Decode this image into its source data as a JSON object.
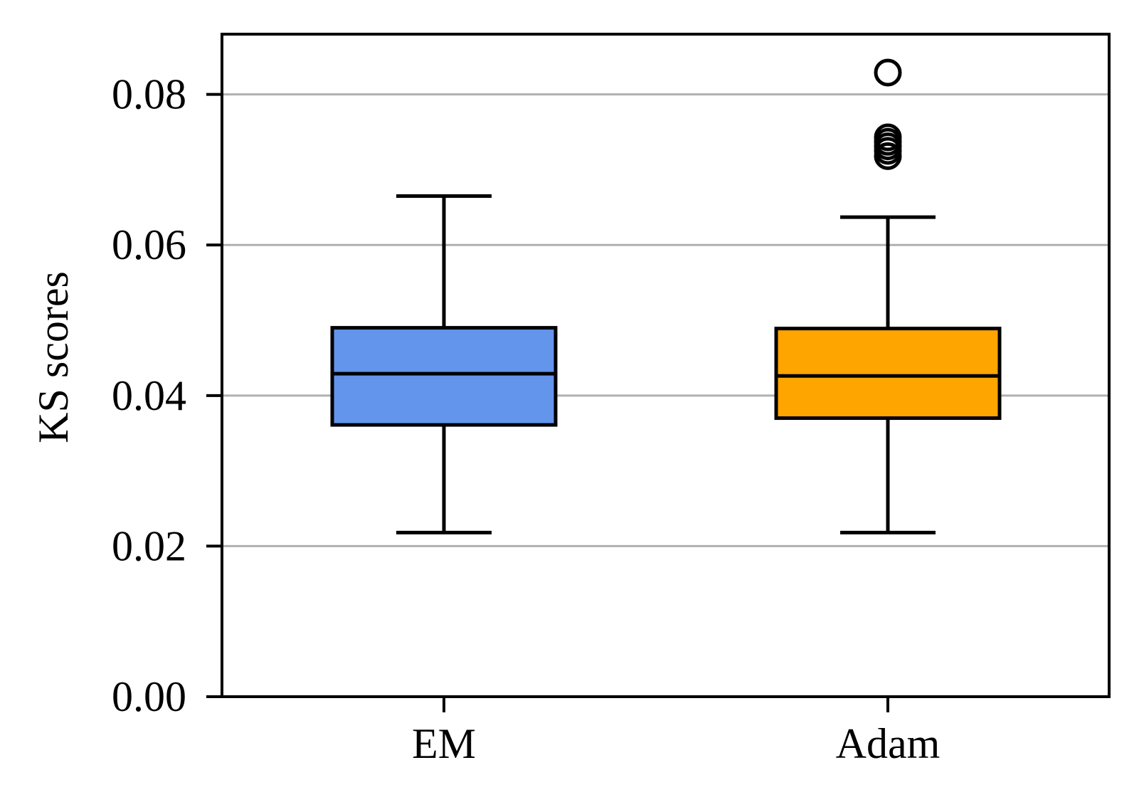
{
  "chart_data": {
    "type": "box",
    "title": "",
    "xlabel": "",
    "ylabel": "KS scores",
    "ylim": [
      0,
      0.088
    ],
    "yticks": [
      0.0,
      0.02,
      0.04,
      0.06,
      0.08
    ],
    "ytick_labels": [
      "0.00",
      "0.02",
      "0.04",
      "0.06",
      "0.08"
    ],
    "grid": "horizontal",
    "categories": [
      "EM",
      "Adam"
    ],
    "boxes": [
      {
        "name": "EM",
        "color": "#6495ED",
        "whisker_low": 0.0218,
        "q1": 0.0361,
        "median": 0.0429,
        "q3": 0.049,
        "whisker_high": 0.0665,
        "outliers": []
      },
      {
        "name": "Adam",
        "color": "#FFA500",
        "whisker_low": 0.0218,
        "q1": 0.037,
        "median": 0.0426,
        "q3": 0.0489,
        "whisker_high": 0.0637,
        "outliers": [
          0.0829,
          0.0743,
          0.0737,
          0.0731,
          0.0725,
          0.0718
        ]
      }
    ]
  }
}
